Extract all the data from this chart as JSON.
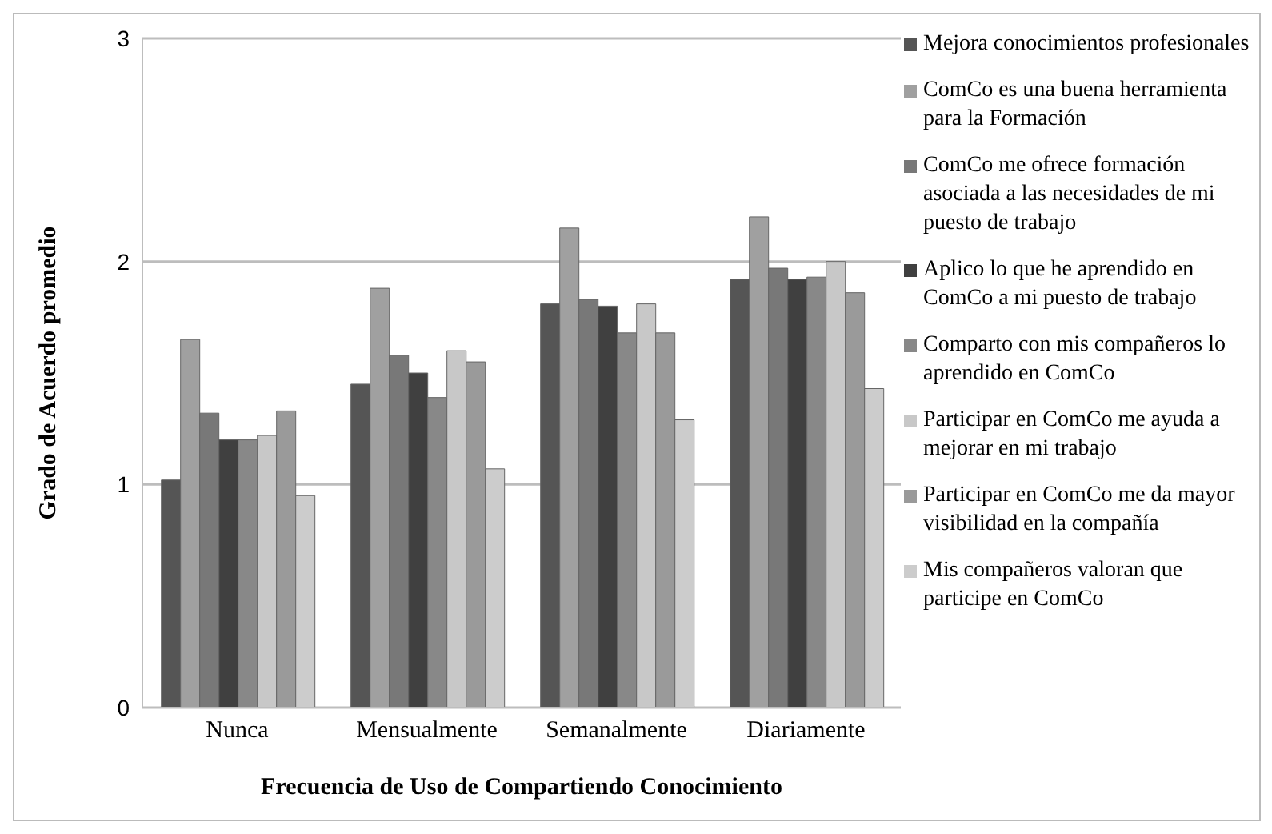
{
  "chart_data": {
    "type": "bar",
    "xlabel": "Frecuencia de Uso de Compartiendo Conocimiento",
    "ylabel": "Grado de Acuerdo promedio",
    "categories": [
      "Nunca",
      "Mensualmente",
      "Semanalmente",
      "Diariamente"
    ],
    "series": [
      {
        "name": "Mejora conocimientos profesionales",
        "color": "#555555",
        "values": [
          1.02,
          1.45,
          1.81,
          1.92
        ]
      },
      {
        "name": "ComCo es una buena herramienta para la Formación",
        "color": "#a0a0a0",
        "values": [
          1.65,
          1.88,
          2.15,
          2.2
        ]
      },
      {
        "name": "ComCo me ofrece formación asociada a las necesidades de mi puesto de trabajo",
        "color": "#787878",
        "values": [
          1.32,
          1.58,
          1.83,
          1.97
        ]
      },
      {
        "name": "Aplico lo que he aprendido en ComCo a mi puesto de trabajo",
        "color": "#404040",
        "values": [
          1.2,
          1.5,
          1.8,
          1.92
        ]
      },
      {
        "name": "Comparto con mis compañeros lo aprendido en ComCo",
        "color": "#888888",
        "values": [
          1.2,
          1.39,
          1.68,
          1.93
        ]
      },
      {
        "name": "Participar en ComCo me ayuda a mejorar en mi trabajo",
        "color": "#c8c8c8",
        "values": [
          1.22,
          1.6,
          1.81,
          2.0
        ]
      },
      {
        "name": "Participar en ComCo me da mayor visibilidad en la compañía",
        "color": "#9a9a9a",
        "values": [
          1.33,
          1.55,
          1.68,
          1.86
        ]
      },
      {
        "name": "Mis compañeros valoran que participe en ComCo",
        "color": "#cccccc",
        "values": [
          0.95,
          1.07,
          1.29,
          1.43
        ]
      }
    ],
    "ylim": [
      0,
      3
    ],
    "yticks": [
      0,
      1,
      2,
      3
    ],
    "grid": "y",
    "legend": "right"
  }
}
